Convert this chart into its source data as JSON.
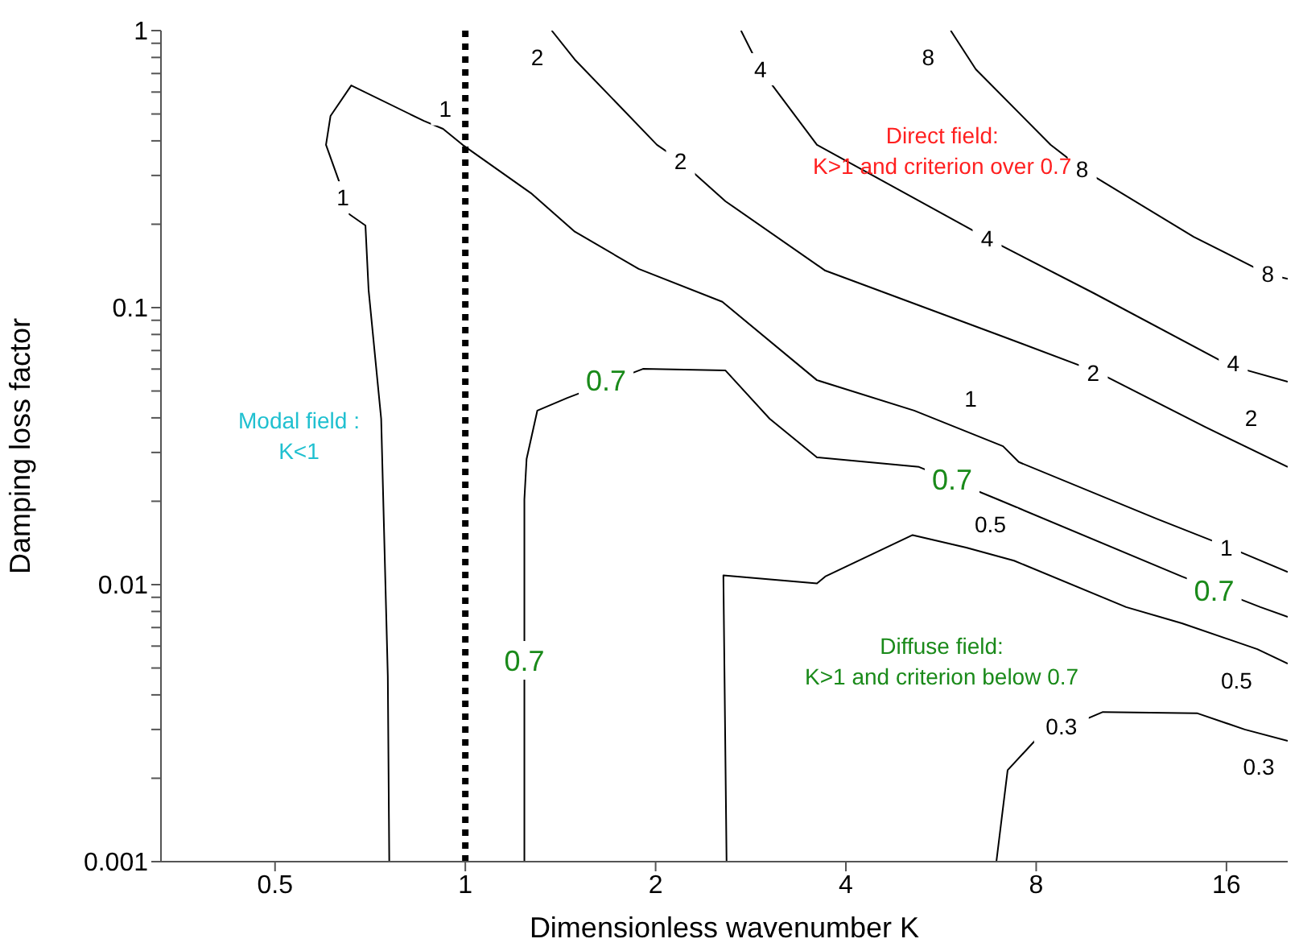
{
  "chart_data": {
    "type": "line",
    "xlabel": "Dimensionless wavenumber K",
    "ylabel": "Damping loss factor",
    "log": "xy",
    "marker": "none",
    "line_style": "solid",
    "grid": false,
    "legend": false,
    "xlim": [
      0.33,
      20
    ],
    "xticks": [
      0.5,
      1,
      2,
      4,
      8,
      16
    ],
    "ylim": [
      0.001,
      1
    ],
    "yticks": [
      0.001,
      {
        "value": 0.002,
        "label": null
      },
      {
        "value": 0.003,
        "label": null
      },
      {
        "value": 0.004,
        "label": null
      },
      {
        "value": 0.005,
        "label": null
      },
      {
        "value": 0.006,
        "label": null
      },
      {
        "value": 0.007,
        "label": null
      },
      {
        "value": 0.008,
        "label": null
      },
      {
        "value": 0.009,
        "label": null
      },
      0.01,
      {
        "value": 0.02,
        "label": null
      },
      {
        "value": 0.03,
        "label": null
      },
      {
        "value": 0.04,
        "label": null
      },
      {
        "value": 0.05,
        "label": null
      },
      {
        "value": 0.06,
        "label": null
      },
      {
        "value": 0.07,
        "label": null
      },
      {
        "value": 0.08,
        "label": null
      },
      {
        "value": 0.09,
        "label": null
      },
      0.1,
      {
        "value": 0.2,
        "label": null
      },
      {
        "value": 0.3,
        "label": null
      },
      {
        "value": 0.4,
        "label": null
      },
      {
        "value": 0.5,
        "label": null
      },
      {
        "value": 0.6,
        "label": null
      },
      {
        "value": 0.7,
        "label": null
      },
      {
        "value": 0.8,
        "label": null
      },
      {
        "value": 0.9,
        "label": null
      },
      1
    ],
    "series": [
      {
        "color": "#000000",
        "x": [
          0.758,
          0.754,
          0.736,
          0.703,
          0.695,
          0.656,
          0.645,
          0.602,
          0.612,
          0.66,
          0.86,
          0.922,
          0.99,
          1.27,
          1.49,
          1.88,
          2.55,
          3.6,
          5.13,
          7.09,
          7.51,
          12.4,
          16.2,
          20
        ],
        "values": [
          0.001,
          0.00467,
          0.0397,
          0.116,
          0.198,
          0.217,
          0.249,
          0.387,
          0.492,
          0.634,
          0.472,
          0.442,
          0.387,
          0.259,
          0.188,
          0.138,
          0.105,
          0.0547,
          0.0425,
          0.0316,
          0.0277,
          0.0173,
          0.0136,
          0.0111
        ]
      },
      {
        "color": "#000000",
        "x": [
          1.37,
          1.49,
          2.01,
          2.19,
          2.58,
          3.71,
          7.09,
          10,
          14.8,
          20
        ],
        "values": [
          1,
          0.786,
          0.387,
          0.338,
          0.242,
          0.136,
          0.0786,
          0.0585,
          0.0371,
          0.0266
        ]
      },
      {
        "color": "#000000",
        "x": [
          2.73,
          2.93,
          3.6,
          6.69,
          9.85,
          16.2,
          20
        ],
        "values": [
          1,
          0.725,
          0.387,
          0.178,
          0.113,
          0.0618,
          0.054
        ]
      },
      {
        "color": "#000000",
        "x": [
          5.86,
          6.42,
          8.43,
          9.46,
          14.2,
          18.6,
          20
        ],
        "values": [
          1,
          0.725,
          0.387,
          0.316,
          0.18,
          0.132,
          0.127
        ]
      },
      {
        "color": "#000000",
        "x": [
          1.24,
          1.24,
          1.25,
          1.3,
          1.45,
          1.91,
          2.58,
          3.03,
          3.6,
          5.22,
          6.96,
          13.6,
          18.1,
          20
        ],
        "values": [
          0.001,
          0.0203,
          0.0284,
          0.0425,
          0.0472,
          0.0601,
          0.0593,
          0.0397,
          0.0288,
          0.0266,
          0.0203,
          0.0107,
          0.0083,
          0.00765
        ]
      },
      {
        "color": "#000000",
        "x": [
          2.59,
          2.56,
          3.6,
          3.71,
          5.1,
          6.2,
          7.38,
          11.1,
          13.6,
          17.9,
          20
        ],
        "values": [
          0.001,
          0.0108,
          0.0101,
          0.0107,
          0.0151,
          0.0136,
          0.0122,
          0.0083,
          0.00725,
          0.00585,
          0.00519
        ]
      },
      {
        "color": "#000000",
        "x": [
          6.92,
          7.21,
          7.96,
          10.2,
          14.4,
          17.1,
          20
        ],
        "values": [
          0.001,
          0.00214,
          0.00273,
          0.00347,
          0.00343,
          0.003,
          0.00273
        ]
      }
    ],
    "ref_lines": [
      {
        "axis": "x",
        "value": 1,
        "line_style": "dotted",
        "color": "#000000"
      }
    ],
    "annotations": [
      {
        "text": "0.7",
        "x": 1.67,
        "y": 0.0547
      },
      {
        "text": "0.7",
        "x": 5.89,
        "y": 0.0239
      },
      {
        "text": "0.7",
        "x": 15.3,
        "y": 0.0095
      },
      {
        "text": "0.7",
        "x": 1.24,
        "y": 0.00533
      },
      {
        "text": "1",
        "x": 0.64,
        "y": 0.25
      },
      {
        "text": "1",
        "x": 0.93,
        "y": 0.52
      },
      {
        "text": "1",
        "x": 6.3,
        "y": 0.047
      },
      {
        "text": "1",
        "x": 16,
        "y": 0.0136
      },
      {
        "text": "2",
        "x": 1.3,
        "y": 0.8
      },
      {
        "text": "2",
        "x": 2.19,
        "y": 0.338
      },
      {
        "text": "2",
        "x": 9.85,
        "y": 0.058
      },
      {
        "text": "2",
        "x": 17.5,
        "y": 0.04
      },
      {
        "text": "4",
        "x": 2.93,
        "y": 0.725
      },
      {
        "text": "4",
        "x": 6.69,
        "y": 0.178
      },
      {
        "text": "4",
        "x": 16.4,
        "y": 0.063
      },
      {
        "text": "8",
        "x": 5.4,
        "y": 0.8
      },
      {
        "text": "8",
        "x": 9.46,
        "y": 0.316
      },
      {
        "text": "8",
        "x": 18.6,
        "y": 0.132
      },
      {
        "text": "0.5",
        "x": 6.77,
        "y": 0.0165
      },
      {
        "text": "0.5",
        "x": 16.6,
        "y": 0.0045
      },
      {
        "text": "0.3",
        "x": 8.77,
        "y": 0.00308
      },
      {
        "text": "0.3",
        "x": 18,
        "y": 0.0022
      },
      "Direct field:\nK>1 and criterion over 0.7",
      "Modal field :\nK<1",
      "Diffuse field:\nK>1 and criterion below 0.7"
    ]
  }
}
